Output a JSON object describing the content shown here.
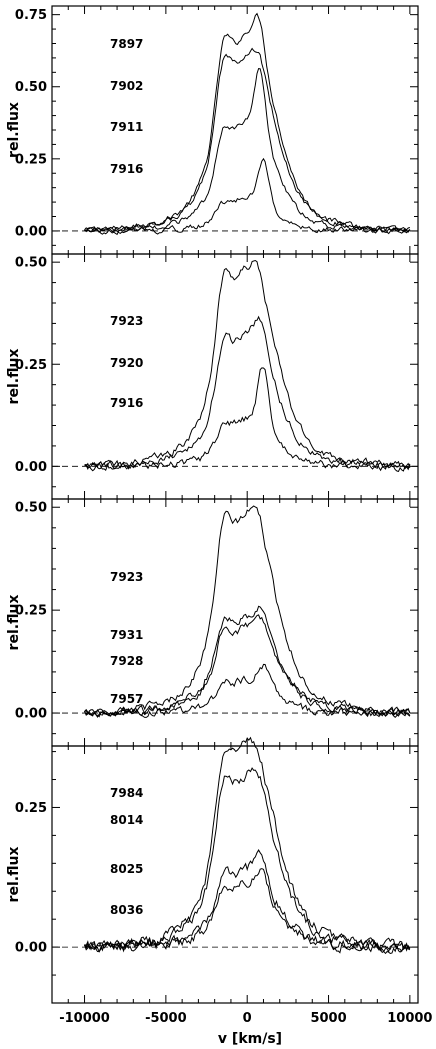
{
  "chart_data": {
    "type": "line",
    "xlabel": "v [km/s]",
    "ylabel": "rel.flux",
    "xlim": [
      -12000,
      10500
    ],
    "xticks": [
      -10000,
      -5000,
      0,
      5000,
      10000
    ],
    "xtick_labels": [
      "-10000",
      "-5000",
      "0",
      "5000",
      "10000"
    ],
    "grid": false,
    "panels": [
      {
        "ylabel": "rel.flux",
        "ylim": [
          -0.08,
          0.78
        ],
        "yticks": [
          0.0,
          0.25,
          0.5,
          0.75
        ],
        "ytick_labels": [
          "0.00",
          "0.25",
          "0.50",
          "0.75"
        ],
        "series": [
          {
            "label": "7897",
            "peak": 0.69,
            "core": 0.58,
            "width": 1350,
            "offset": 150
          },
          {
            "label": "7902",
            "peak": 0.57,
            "core": 0.52,
            "width": 1350,
            "offset": 150
          },
          {
            "label": "7911",
            "peak": 0.54,
            "core": 0.32,
            "width": 1300,
            "offset": 200
          },
          {
            "label": "7916",
            "peak": 0.25,
            "core": 0.1,
            "width": 1150,
            "offset": 400
          }
        ]
      },
      {
        "ylabel": "rel.flux",
        "ylim": [
          -0.08,
          0.52
        ],
        "yticks": [
          0.0,
          0.25,
          0.5
        ],
        "ytick_labels": [
          "0.00",
          "0.25",
          "0.50"
        ],
        "series": [
          {
            "label": "7923",
            "peak": 0.45,
            "core": 0.41,
            "width": 1350,
            "offset": 100
          },
          {
            "label": "7920",
            "peak": 0.34,
            "core": 0.28,
            "width": 1300,
            "offset": 250
          },
          {
            "label": "7916",
            "peak": 0.25,
            "core": 0.1,
            "width": 1150,
            "offset": 400
          }
        ]
      },
      {
        "ylabel": "rel.flux",
        "ylim": [
          -0.08,
          0.52
        ],
        "yticks": [
          0.0,
          0.25,
          0.5
        ],
        "ytick_labels": [
          "0.00",
          "0.25",
          "0.50"
        ],
        "series": [
          {
            "label": "7923",
            "peak": 0.45,
            "core": 0.41,
            "width": 1350,
            "offset": 100
          },
          {
            "label": "7931",
            "peak": 0.24,
            "core": 0.2,
            "width": 1400,
            "offset": 300
          },
          {
            "label": "7928",
            "peak": 0.22,
            "core": 0.18,
            "width": 1350,
            "offset": 350
          },
          {
            "label": "7957",
            "peak": 0.12,
            "core": 0.07,
            "width": 1200,
            "offset": 500
          }
        ]
      },
      {
        "ylabel": "rel.flux",
        "ylim": [
          -0.1,
          0.36
        ],
        "yticks": [
          0.0,
          0.25
        ],
        "ytick_labels": [
          "0.00",
          "0.25"
        ],
        "series": [
          {
            "label": "7984",
            "peak": 0.32,
            "core": 0.31,
            "width": 1350,
            "offset": 100
          },
          {
            "label": "8014",
            "peak": 0.29,
            "core": 0.26,
            "width": 1350,
            "offset": 150
          },
          {
            "label": "8025",
            "peak": 0.16,
            "core": 0.12,
            "width": 1300,
            "offset": 300
          },
          {
            "label": "8036",
            "peak": 0.13,
            "core": 0.1,
            "width": 1300,
            "offset": 400
          }
        ]
      }
    ]
  }
}
